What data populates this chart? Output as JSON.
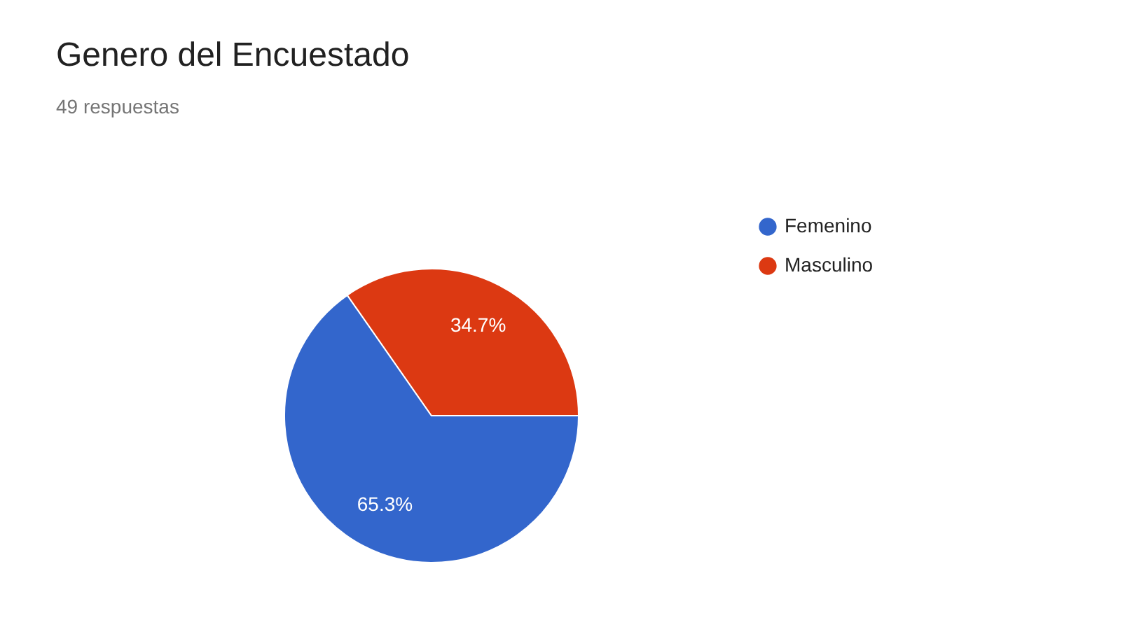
{
  "chart_data": {
    "type": "pie",
    "title": "Genero del Encuestado",
    "subtitle": "49 respuestas",
    "categories": [
      "Femenino",
      "Masculino"
    ],
    "values": [
      65.3,
      34.7
    ],
    "colors": [
      "#3366cc",
      "#dc3912"
    ],
    "value_labels": [
      "65.3%",
      "34.7%"
    ],
    "legend": "top right"
  }
}
